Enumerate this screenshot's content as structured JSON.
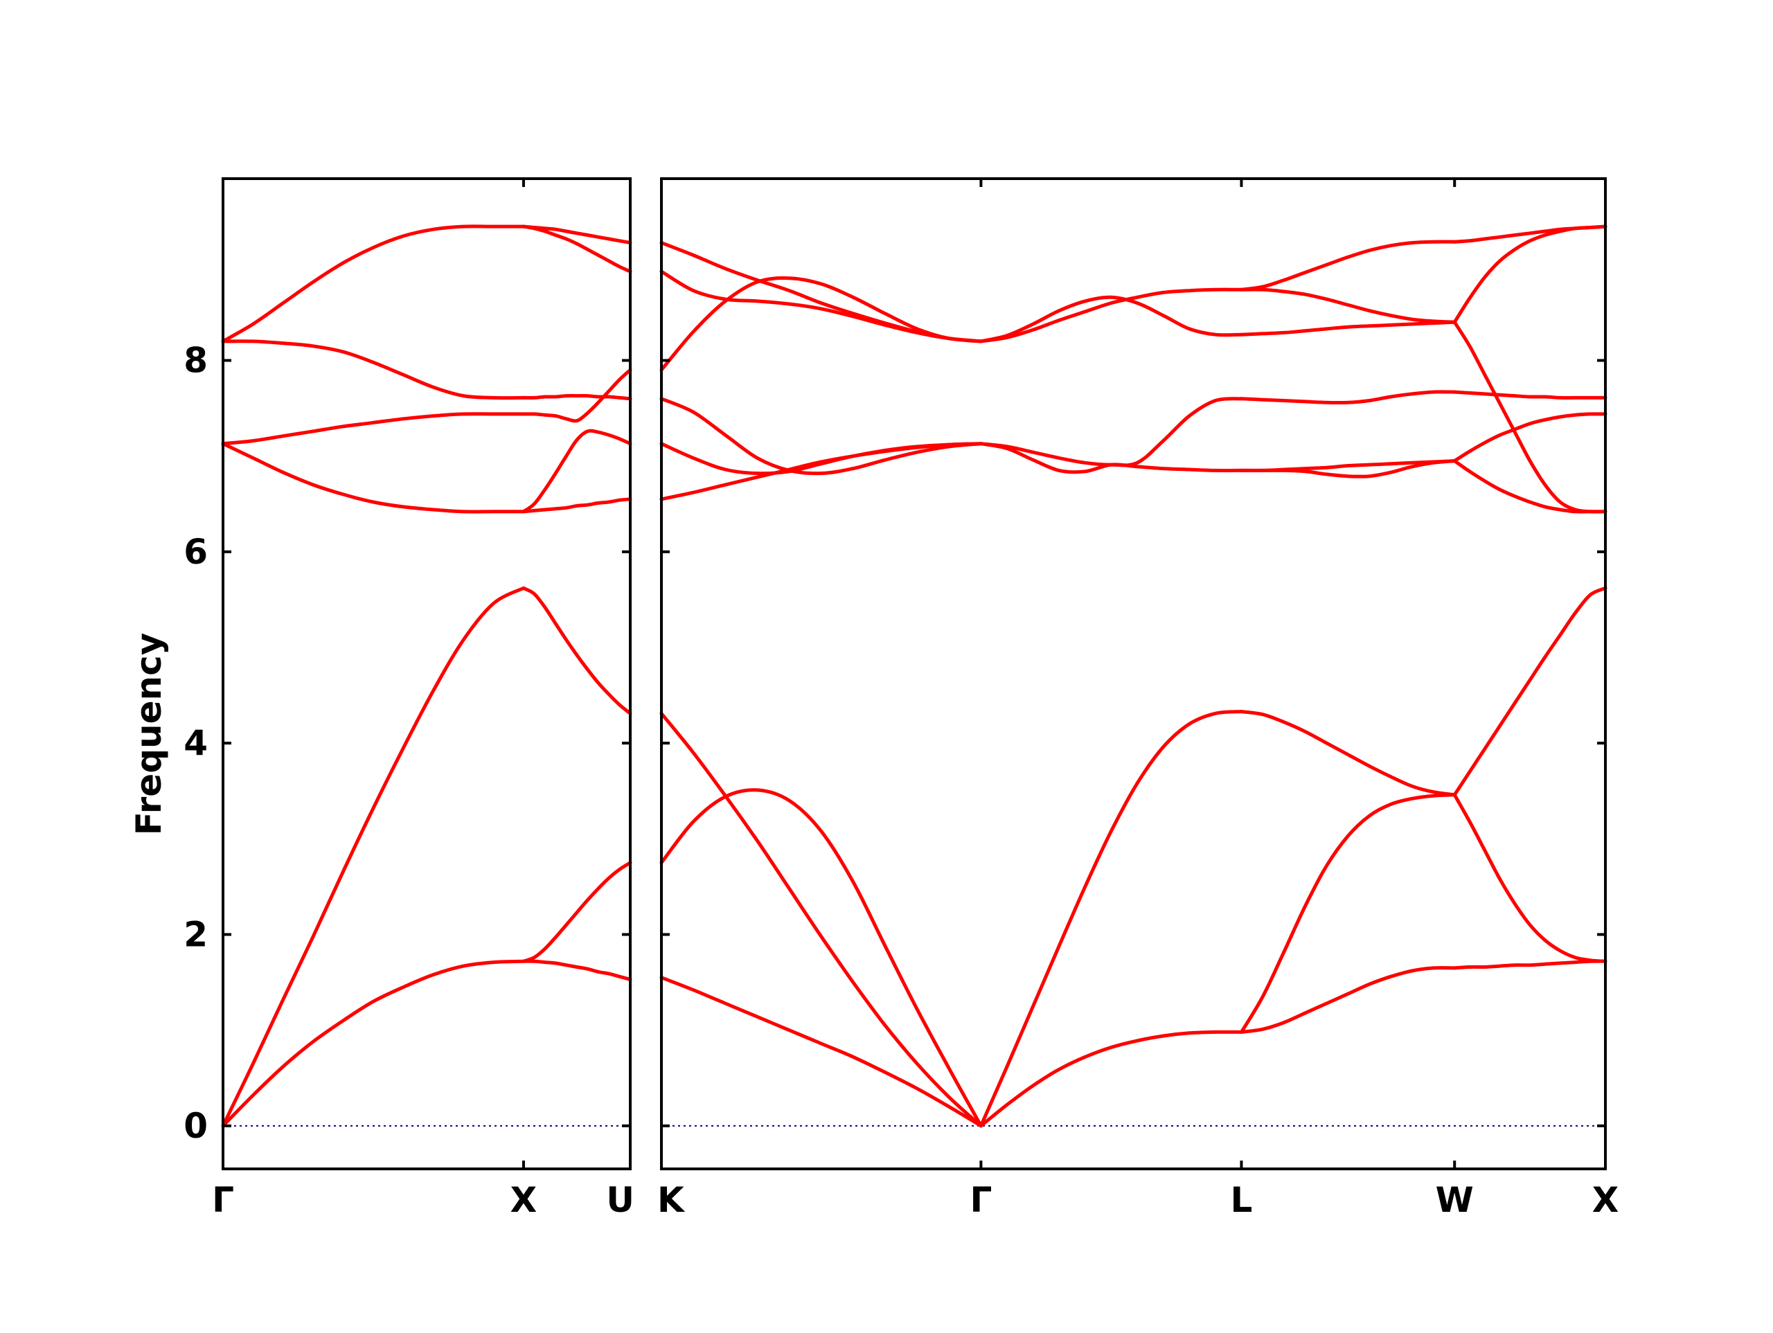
{
  "chart_data": {
    "type": "line",
    "ylabel": "Frequency",
    "ylim": [
      -0.45,
      9.9
    ],
    "yticks": [
      0,
      2,
      4,
      6,
      8
    ],
    "grid": false,
    "colors": {
      "bands": "#ff0000",
      "zero_line": "#00008b",
      "axes": "#000000"
    },
    "panels": [
      {
        "id": "panel1",
        "path": [
          "Γ",
          "X",
          "U"
        ],
        "segments": [
          {
            "from": "Γ",
            "to": "X",
            "x": [
              0,
              0.1,
              0.2,
              0.3,
              0.4,
              0.5,
              0.6,
              0.7,
              0.8,
              0.9,
              1.0
            ],
            "bands": [
              [
                0,
                0.32,
                0.62,
                0.88,
                1.1,
                1.3,
                1.45,
                1.58,
                1.67,
                1.71,
                1.72
              ],
              [
                0,
                0.65,
                1.32,
                1.98,
                2.66,
                3.32,
                3.95,
                4.55,
                5.08,
                5.46,
                5.62
              ],
              [
                7.13,
                6.98,
                6.83,
                6.7,
                6.6,
                6.52,
                6.47,
                6.44,
                6.42,
                6.42,
                6.42
              ],
              [
                7.13,
                7.16,
                7.21,
                7.26,
                7.31,
                7.35,
                7.39,
                7.42,
                7.44,
                7.44,
                7.44
              ],
              [
                8.2,
                8.2,
                8.18,
                8.15,
                8.09,
                7.98,
                7.85,
                7.72,
                7.63,
                7.61,
                7.61
              ],
              [
                8.2,
                8.38,
                8.6,
                8.82,
                9.02,
                9.18,
                9.3,
                9.37,
                9.4,
                9.4,
                9.4
              ]
            ]
          },
          {
            "from": "X",
            "to": "U",
            "x": [
              0,
              0.1,
              0.2,
              0.3,
              0.4,
              0.5,
              0.6,
              0.7,
              0.8,
              0.9,
              1.0
            ],
            "bands": [
              [
                1.72,
                1.72,
                1.71,
                1.7,
                1.68,
                1.66,
                1.64,
                1.61,
                1.59,
                1.56,
                1.53
              ],
              [
                1.72,
                1.76,
                1.85,
                1.97,
                2.1,
                2.23,
                2.36,
                2.48,
                2.59,
                2.68,
                2.75
              ],
              [
                5.62,
                5.56,
                5.42,
                5.25,
                5.08,
                4.92,
                4.77,
                4.63,
                4.51,
                4.4,
                4.31
              ],
              [
                6.42,
                6.43,
                6.44,
                6.45,
                6.46,
                6.48,
                6.49,
                6.51,
                6.52,
                6.54,
                6.55
              ],
              [
                6.42,
                6.5,
                6.65,
                6.82,
                7.0,
                7.17,
                7.26,
                7.25,
                7.22,
                7.18,
                7.13
              ],
              [
                7.44,
                7.44,
                7.43,
                7.42,
                7.39,
                7.37,
                7.45,
                7.56,
                7.68,
                7.8,
                7.9
              ],
              [
                7.61,
                7.61,
                7.62,
                7.62,
                7.63,
                7.63,
                7.63,
                7.62,
                7.62,
                7.61,
                7.6
              ],
              [
                9.4,
                9.39,
                9.38,
                9.37,
                9.35,
                9.33,
                9.31,
                9.29,
                9.27,
                9.25,
                9.23
              ],
              [
                9.4,
                9.38,
                9.35,
                9.31,
                9.27,
                9.22,
                9.16,
                9.1,
                9.04,
                8.98,
                8.93
              ]
            ]
          }
        ],
        "xticks": [
          "Γ",
          "X",
          "U"
        ],
        "tick_positions": [
          0,
          1,
          1.355
        ]
      },
      {
        "id": "panel2",
        "path": [
          "K",
          "Γ",
          "L",
          "W",
          "X"
        ],
        "segments": [
          {
            "from": "K",
            "to": "Γ",
            "x": [
              0,
              0.1,
              0.2,
              0.3,
              0.4,
              0.5,
              0.6,
              0.7,
              0.8,
              0.9,
              1.0
            ],
            "bands": [
              [
                1.55,
                1.42,
                1.28,
                1.14,
                1.0,
                0.86,
                0.72,
                0.56,
                0.39,
                0.2,
                0
              ],
              [
                2.75,
                3.18,
                3.44,
                3.51,
                3.4,
                3.08,
                2.55,
                1.88,
                1.22,
                0.6,
                0
              ],
              [
                4.31,
                3.9,
                3.45,
                2.98,
                2.48,
                1.98,
                1.5,
                1.05,
                0.65,
                0.3,
                0
              ],
              [
                6.55,
                6.62,
                6.7,
                6.78,
                6.86,
                6.94,
                7.0,
                7.05,
                7.09,
                7.12,
                7.13
              ],
              [
                7.13,
                6.98,
                6.86,
                6.82,
                6.84,
                6.92,
                7.0,
                7.06,
                7.1,
                7.12,
                7.13
              ],
              [
                7.6,
                7.46,
                7.22,
                6.98,
                6.85,
                6.82,
                6.87,
                6.96,
                7.04,
                7.1,
                7.13
              ],
              [
                7.9,
                8.3,
                8.62,
                8.82,
                8.86,
                8.8,
                8.66,
                8.49,
                8.33,
                8.23,
                8.2
              ],
              [
                8.93,
                8.73,
                8.64,
                8.62,
                8.59,
                8.54,
                8.46,
                8.37,
                8.29,
                8.23,
                8.2
              ],
              [
                9.23,
                9.1,
                8.96,
                8.84,
                8.73,
                8.6,
                8.49,
                8.39,
                8.3,
                8.23,
                8.2
              ]
            ]
          },
          {
            "from": "Γ",
            "to": "L",
            "x": [
              0,
              0.1,
              0.2,
              0.3,
              0.4,
              0.5,
              0.6,
              0.7,
              0.8,
              0.9,
              1.0
            ],
            "bands": [
              [
                0,
                0.22,
                0.42,
                0.59,
                0.72,
                0.82,
                0.89,
                0.94,
                0.97,
                0.98,
                0.98
              ],
              [
                0,
                0.62,
                1.25,
                1.88,
                2.5,
                3.08,
                3.58,
                3.96,
                4.2,
                4.31,
                4.33
              ],
              [
                7.13,
                7.08,
                6.96,
                6.85,
                6.84,
                6.91,
                6.89,
                6.87,
                6.86,
                6.85,
                6.85
              ],
              [
                7.13,
                7.1,
                7.04,
                6.98,
                6.93,
                6.91,
                6.93,
                7.16,
                7.42,
                7.58,
                7.6
              ],
              [
                8.2,
                8.26,
                8.38,
                8.52,
                8.62,
                8.66,
                8.6,
                8.47,
                8.33,
                8.27,
                8.27
              ],
              [
                8.2,
                8.24,
                8.32,
                8.42,
                8.51,
                8.6,
                8.66,
                8.71,
                8.73,
                8.74,
                8.74
              ]
            ]
          },
          {
            "from": "L",
            "to": "W",
            "x": [
              0,
              0.1,
              0.2,
              0.3,
              0.4,
              0.5,
              0.6,
              0.7,
              0.8,
              0.9,
              1.0
            ],
            "bands": [
              [
                0.98,
                1.01,
                1.08,
                1.18,
                1.28,
                1.38,
                1.48,
                1.56,
                1.62,
                1.65,
                1.65
              ],
              [
                0.98,
                1.35,
                1.82,
                2.3,
                2.72,
                3.03,
                3.24,
                3.36,
                3.42,
                3.45,
                3.46
              ],
              [
                4.33,
                4.3,
                4.22,
                4.12,
                4.0,
                3.88,
                3.76,
                3.65,
                3.55,
                3.49,
                3.46
              ],
              [
                6.85,
                6.85,
                6.85,
                6.84,
                6.81,
                6.79,
                6.79,
                6.83,
                6.89,
                6.93,
                6.95
              ],
              [
                6.85,
                6.85,
                6.86,
                6.87,
                6.88,
                6.9,
                6.91,
                6.92,
                6.93,
                6.94,
                6.95
              ],
              [
                7.6,
                7.59,
                7.58,
                7.57,
                7.56,
                7.56,
                7.58,
                7.62,
                7.65,
                7.67,
                7.67
              ],
              [
                8.27,
                8.28,
                8.29,
                8.31,
                8.33,
                8.35,
                8.36,
                8.37,
                8.38,
                8.39,
                8.4
              ],
              [
                8.74,
                8.74,
                8.72,
                8.69,
                8.64,
                8.58,
                8.52,
                8.47,
                8.43,
                8.41,
                8.4
              ],
              [
                8.74,
                8.77,
                8.84,
                8.92,
                9.0,
                9.08,
                9.15,
                9.2,
                9.23,
                9.24,
                9.24
              ]
            ]
          },
          {
            "from": "W",
            "to": "X",
            "x": [
              0,
              0.1,
              0.2,
              0.3,
              0.4,
              0.5,
              0.6,
              0.7,
              0.8,
              0.9,
              1.0
            ],
            "bands": [
              [
                1.65,
                1.66,
                1.66,
                1.67,
                1.68,
                1.68,
                1.69,
                1.7,
                1.71,
                1.72,
                1.72
              ],
              [
                3.46,
                3.18,
                2.88,
                2.58,
                2.32,
                2.1,
                1.94,
                1.83,
                1.76,
                1.73,
                1.72
              ],
              [
                3.46,
                3.7,
                3.94,
                4.18,
                4.42,
                4.66,
                4.9,
                5.13,
                5.36,
                5.55,
                5.62
              ],
              [
                6.95,
                6.84,
                6.74,
                6.65,
                6.58,
                6.52,
                6.47,
                6.44,
                6.42,
                6.42,
                6.42
              ],
              [
                6.95,
                7.05,
                7.14,
                7.22,
                7.28,
                7.34,
                7.38,
                7.41,
                7.43,
                7.44,
                7.44
              ],
              [
                7.67,
                7.66,
                7.65,
                7.64,
                7.63,
                7.62,
                7.62,
                7.61,
                7.61,
                7.61,
                7.61
              ],
              [
                8.4,
                8.15,
                7.85,
                7.55,
                7.25,
                6.95,
                6.7,
                6.52,
                6.44,
                6.42,
                6.42
              ],
              [
                8.4,
                8.65,
                8.87,
                9.04,
                9.16,
                9.25,
                9.31,
                9.35,
                9.38,
                9.39,
                9.4
              ],
              [
                9.24,
                9.25,
                9.27,
                9.29,
                9.31,
                9.33,
                9.35,
                9.37,
                9.38,
                9.39,
                9.4
              ]
            ]
          }
        ],
        "xticks": [
          "K",
          "Γ",
          "L",
          "W",
          "X"
        ],
        "segment_lengths": [
          1.0,
          0.815,
          0.667,
          0.472
        ]
      }
    ]
  }
}
